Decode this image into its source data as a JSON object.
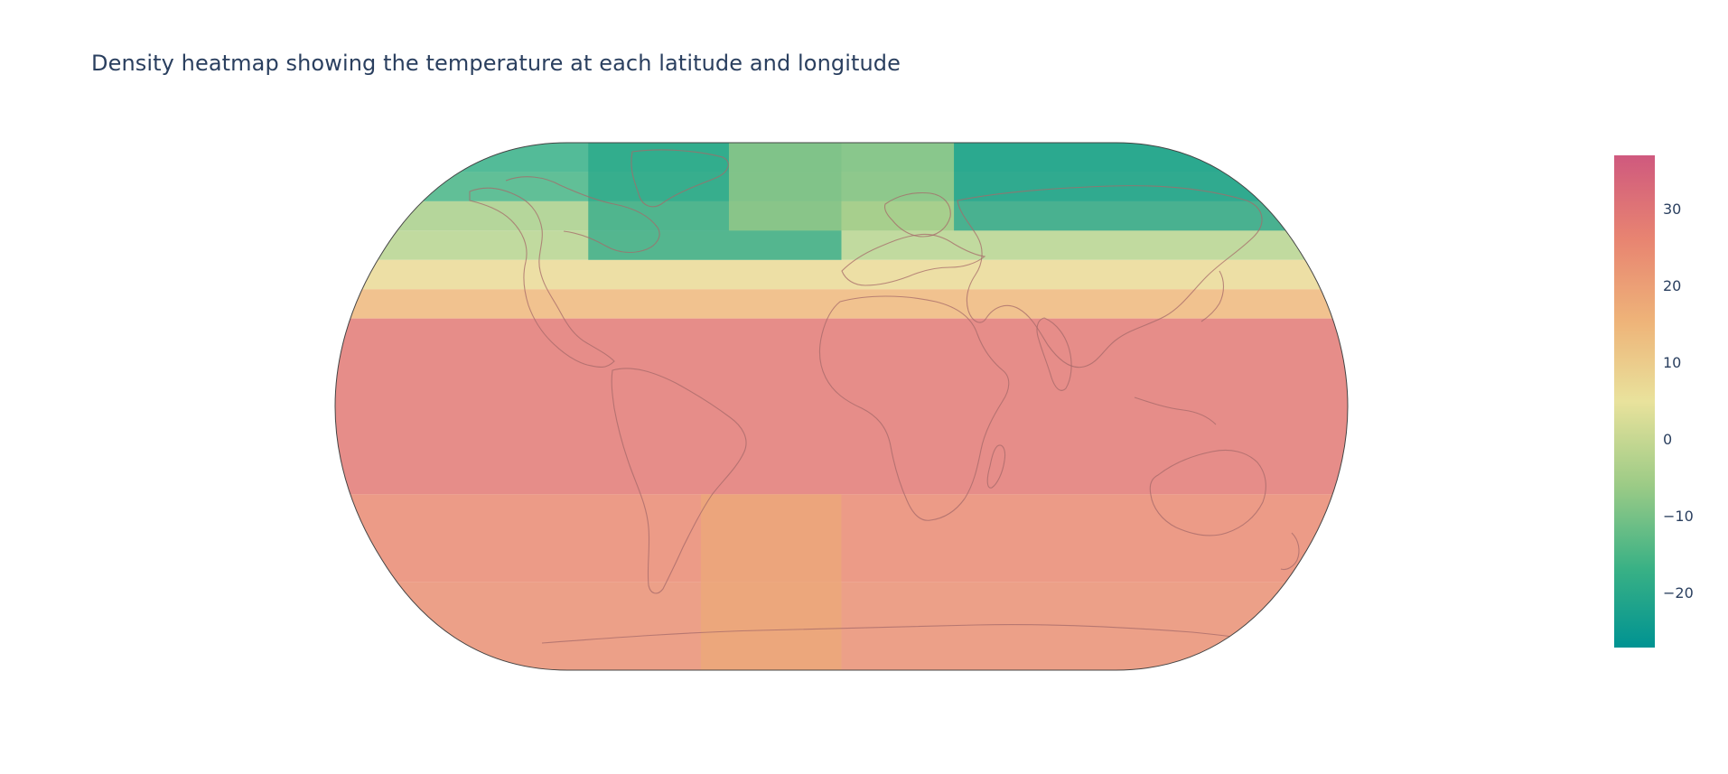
{
  "title": "Density heatmap showing the temperature at each latitude and longitude",
  "chart_data": {
    "type": "heatmap",
    "projection": "natural earth",
    "colorscale": [
      "#009392",
      "#39b185",
      "#9ccb86",
      "#e9e29c",
      "#eeb479",
      "#e88471",
      "#cf597e"
    ],
    "colorbar": {
      "range": [
        -27,
        37
      ],
      "ticks": [
        {
          "value": 30,
          "label": "30"
        },
        {
          "value": 20,
          "label": "20"
        },
        {
          "value": 10,
          "label": "10"
        },
        {
          "value": 0,
          "label": "0"
        },
        {
          "value": -10,
          "label": "−10"
        },
        {
          "value": -20,
          "label": "−20"
        }
      ]
    },
    "lat_bands": [
      {
        "lat_from": 90,
        "lat_to": 80,
        "value": -17
      },
      {
        "lat_from": 80,
        "lat_to": 70,
        "value": -15
      },
      {
        "lat_from": 70,
        "lat_to": 60,
        "value": -4
      },
      {
        "lat_from": 60,
        "lat_to": 50,
        "value": -2
      },
      {
        "lat_from": 50,
        "lat_to": 40,
        "value": 7
      },
      {
        "lat_from": 40,
        "lat_to": 30,
        "value": 15
      },
      {
        "lat_from": 30,
        "lat_to": -30,
        "value": 29
      },
      {
        "lat_from": -30,
        "lat_to": -60,
        "value": 25
      },
      {
        "lat_from": -60,
        "lat_to": -90,
        "value": 24
      }
    ],
    "regions": [
      {
        "lon_from": -90,
        "lon_to": 0,
        "lat_from": 90,
        "lat_to": 50,
        "value": -20
      },
      {
        "lon_from": 40,
        "lon_to": 180,
        "lat_from": 90,
        "lat_to": 60,
        "value": -22
      },
      {
        "lon_from": -40,
        "lon_to": 40,
        "lat_from": 90,
        "lat_to": 60,
        "value": -5
      },
      {
        "lon_from": -50,
        "lon_to": 0,
        "lat_from": -30,
        "lat_to": -90,
        "value": 18
      }
    ]
  }
}
